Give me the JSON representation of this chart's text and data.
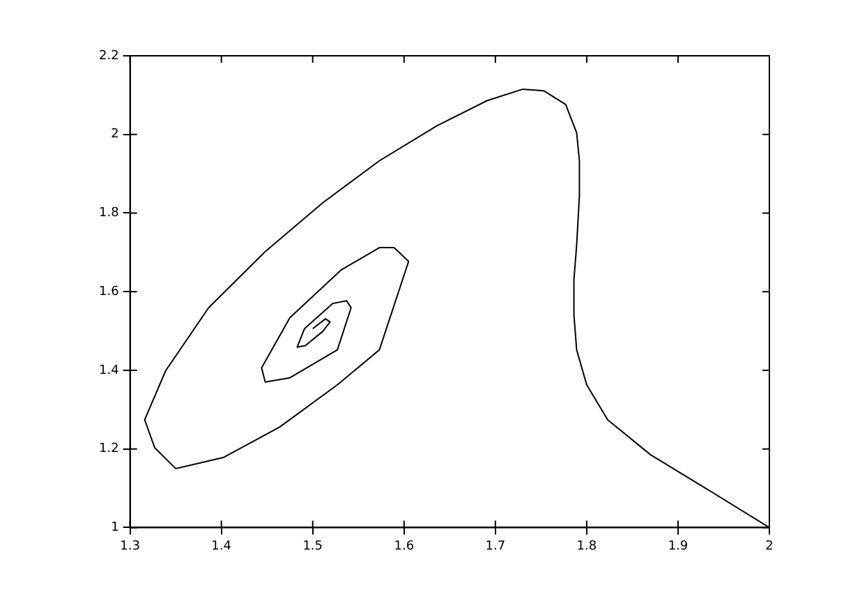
{
  "chart_data": {
    "type": "line",
    "marker": "none",
    "grid": false,
    "xlim": [
      1.3,
      2
    ],
    "xticks": [
      1.3,
      1.4,
      1.5,
      1.6,
      1.7,
      1.8,
      1.9,
      2
    ],
    "ylim": [
      1,
      2.2
    ],
    "yticks": [
      1,
      1.2,
      1.4,
      1.6,
      1.8,
      2,
      2.2
    ],
    "series": [
      {
        "color": "#000000",
        "x": [
          2.0,
          1.933,
          1.87,
          1.823,
          1.8,
          1.789,
          1.786,
          1.786,
          1.789,
          1.792,
          1.792,
          1.789,
          1.777,
          1.753,
          1.73,
          1.691,
          1.636,
          1.573,
          1.511,
          1.448,
          1.386,
          1.339,
          1.316,
          1.327,
          1.35,
          1.402,
          1.464,
          1.527,
          1.573,
          1.605,
          1.589,
          1.573,
          1.531,
          1.475,
          1.444,
          1.448,
          1.475,
          1.527,
          1.542,
          1.537,
          1.522,
          1.491,
          1.483,
          1.492,
          1.511,
          1.519,
          1.514,
          1.5
        ],
        "values": [
          1.0,
          1.096,
          1.185,
          1.274,
          1.363,
          1.452,
          1.541,
          1.63,
          1.719,
          1.844,
          1.933,
          2.004,
          2.076,
          2.111,
          2.115,
          2.086,
          2.022,
          1.933,
          1.826,
          1.702,
          1.559,
          1.399,
          1.274,
          1.203,
          1.15,
          1.178,
          1.256,
          1.363,
          1.452,
          1.677,
          1.712,
          1.712,
          1.655,
          1.534,
          1.406,
          1.37,
          1.381,
          1.452,
          1.559,
          1.577,
          1.57,
          1.506,
          1.459,
          1.463,
          1.499,
          1.523,
          1.531,
          1.506
        ]
      }
    ]
  }
}
